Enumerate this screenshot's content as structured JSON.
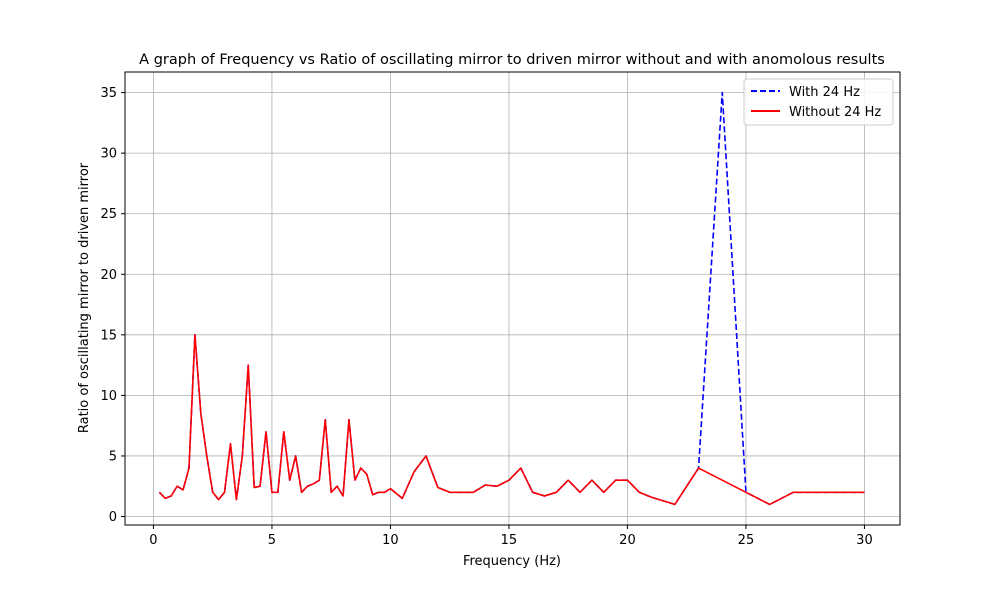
{
  "chart_data": {
    "type": "line",
    "title": "A graph of Frequency vs Ratio of oscillating mirror to driven mirror without and with anomolous results",
    "xlabel": "Frequency (Hz)",
    "ylabel": "Ratio of oscillating mirror to driven mirror",
    "xlim": [
      -1.2,
      31.5
    ],
    "ylim": [
      -0.7,
      36.7
    ],
    "xticks": [
      0,
      5,
      10,
      15,
      20,
      25,
      30
    ],
    "yticks": [
      0,
      5,
      10,
      15,
      20,
      25,
      30,
      35
    ],
    "grid": true,
    "legend_position": "top-right",
    "series": [
      {
        "name": "With 24 Hz",
        "color": "#0000ff",
        "style": "dashed",
        "x": [
          0.25,
          0.5,
          0.75,
          1,
          1.25,
          1.5,
          1.75,
          2,
          2.25,
          2.5,
          2.75,
          3,
          3.25,
          3.5,
          3.75,
          4,
          4.25,
          4.5,
          4.75,
          5,
          5.25,
          5.5,
          5.75,
          6,
          6.25,
          6.5,
          6.75,
          7,
          7.25,
          7.5,
          7.75,
          8,
          8.25,
          8.5,
          8.75,
          9,
          9.25,
          9.5,
          9.75,
          10,
          10.5,
          11,
          11.5,
          12,
          12.5,
          13,
          13.5,
          14,
          14.5,
          15,
          15.5,
          16,
          16.5,
          17,
          17.5,
          18,
          18.5,
          19,
          19.5,
          20,
          20.5,
          21,
          22,
          23,
          24,
          25,
          26,
          27,
          28,
          29,
          30
        ],
        "y": [
          2,
          1.5,
          1.7,
          2.5,
          2.2,
          4,
          15,
          8.5,
          5,
          2,
          1.4,
          2,
          6,
          1.4,
          5,
          12.5,
          2.4,
          2.5,
          7,
          2,
          2,
          7,
          3,
          5,
          2,
          2.5,
          2.7,
          3,
          8,
          2,
          2.5,
          1.7,
          8,
          3,
          4,
          3.5,
          1.8,
          2,
          2,
          2.3,
          1.5,
          3.7,
          5,
          2.4,
          2,
          2,
          2,
          2.6,
          2.5,
          3,
          4,
          2,
          1.7,
          2,
          3,
          2,
          3,
          2,
          3,
          3,
          2,
          1.6,
          1,
          4,
          35,
          2,
          1,
          2,
          2,
          2,
          2
        ]
      },
      {
        "name": "Without 24 Hz",
        "color": "#ff0000",
        "style": "solid",
        "x": [
          0.25,
          0.5,
          0.75,
          1,
          1.25,
          1.5,
          1.75,
          2,
          2.25,
          2.5,
          2.75,
          3,
          3.25,
          3.5,
          3.75,
          4,
          4.25,
          4.5,
          4.75,
          5,
          5.25,
          5.5,
          5.75,
          6,
          6.25,
          6.5,
          6.75,
          7,
          7.25,
          7.5,
          7.75,
          8,
          8.25,
          8.5,
          8.75,
          9,
          9.25,
          9.5,
          9.75,
          10,
          10.5,
          11,
          11.5,
          12,
          12.5,
          13,
          13.5,
          14,
          14.5,
          15,
          15.5,
          16,
          16.5,
          17,
          17.5,
          18,
          18.5,
          19,
          19.5,
          20,
          20.5,
          21,
          22,
          23,
          25,
          26,
          27,
          28,
          29,
          30
        ],
        "y": [
          2,
          1.5,
          1.7,
          2.5,
          2.2,
          4,
          15,
          8.5,
          5,
          2,
          1.4,
          2,
          6,
          1.4,
          5,
          12.5,
          2.4,
          2.5,
          7,
          2,
          2,
          7,
          3,
          5,
          2,
          2.5,
          2.7,
          3,
          8,
          2,
          2.5,
          1.7,
          8,
          3,
          4,
          3.5,
          1.8,
          2,
          2,
          2.3,
          1.5,
          3.7,
          5,
          2.4,
          2,
          2,
          2,
          2.6,
          2.5,
          3,
          4,
          2,
          1.7,
          2,
          3,
          2,
          3,
          2,
          3,
          3,
          2,
          1.6,
          1,
          4,
          2,
          1,
          2,
          2,
          2,
          2
        ]
      }
    ]
  }
}
